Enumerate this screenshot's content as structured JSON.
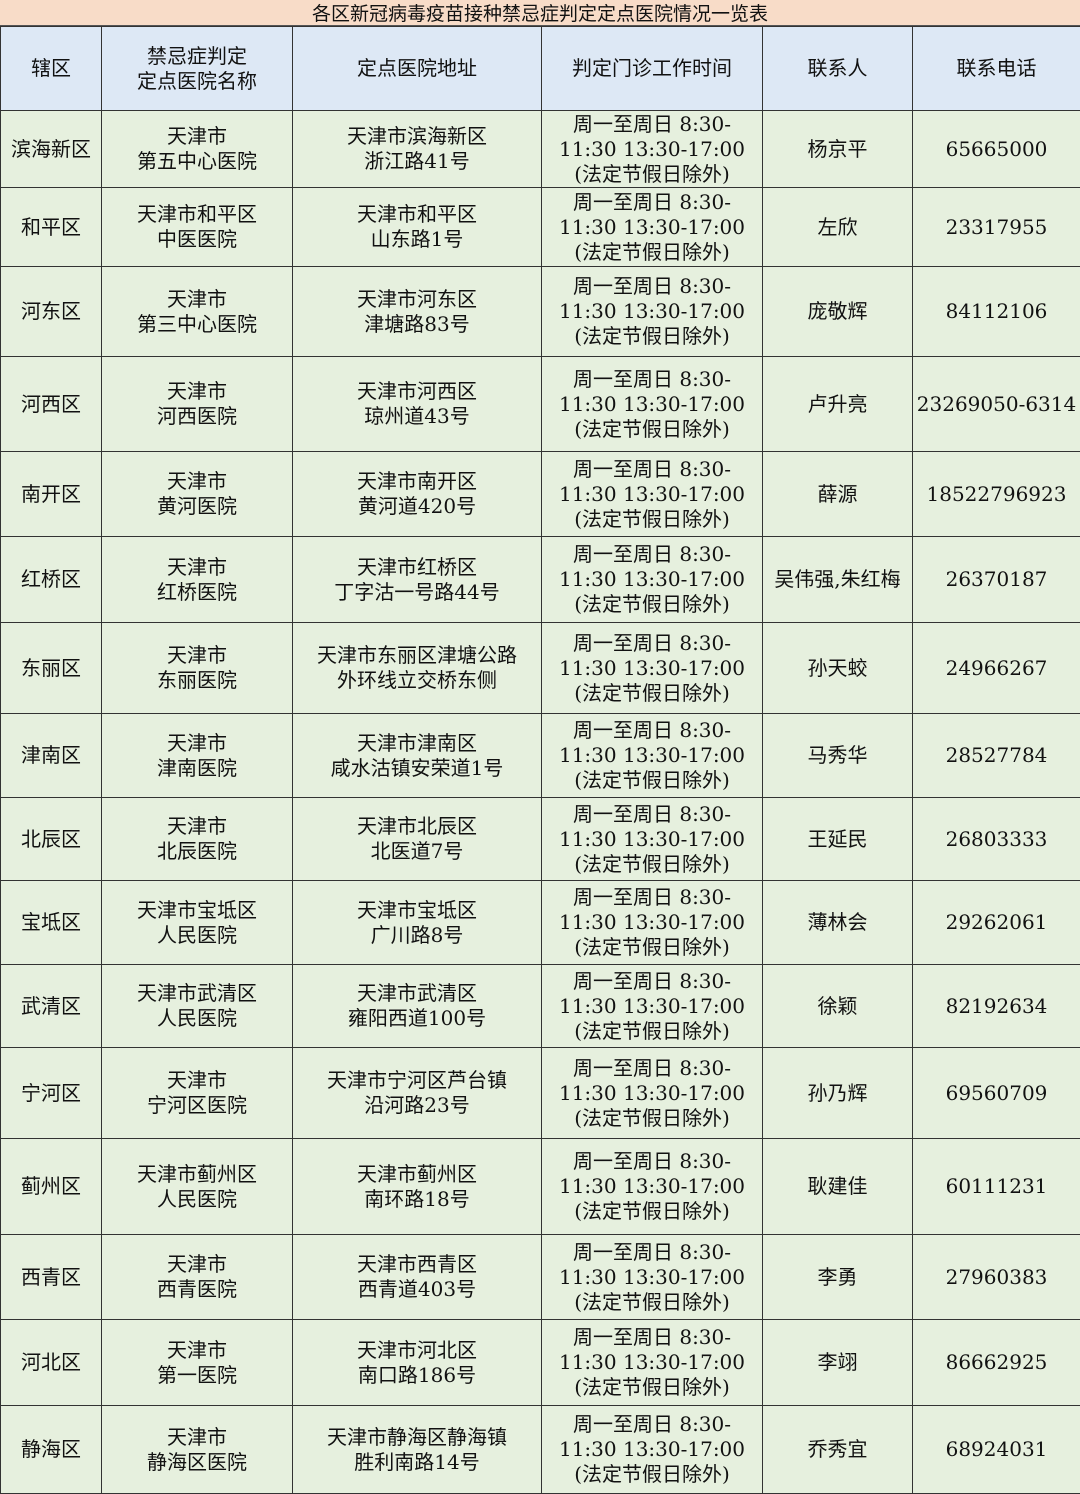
{
  "title": "各区新冠病毒疫苗接种禁忌症判定定点医院情况一览表",
  "headers": [
    "辖区",
    "禁忌症判定\n定点医院名称",
    "定点医院地址",
    "判定门诊工作时间",
    "联系人",
    "联系电话"
  ],
  "rows": [
    {
      "district": "滨海新区",
      "hospital": "天津市\n第五中心医院",
      "address": "天津市滨海新区\n浙江路41号",
      "hours": "周一至周日 8:30-\n11:30 13:30-17:00\n(法定节假日除外)",
      "contact": "杨京平",
      "phone": "65665000"
    },
    {
      "district": "和平区",
      "hospital": "天津市和平区\n中医医院",
      "address": "天津市和平区\n山东路1号",
      "hours": "周一至周日 8:30-\n11:30 13:30-17:00\n(法定节假日除外)",
      "contact": "左欣",
      "phone": "23317955"
    },
    {
      "district": "河东区",
      "hospital": "天津市\n第三中心医院",
      "address": "天津市河东区\n津塘路83号",
      "hours": "周一至周日 8:30-\n11:30 13:30-17:00\n(法定节假日除外)",
      "contact": "庞敬辉",
      "phone": "84112106"
    },
    {
      "district": "河西区",
      "hospital": "天津市\n河西医院",
      "address": "天津市河西区\n琼州道43号",
      "hours": "周一至周日 8:30-\n11:30 13:30-17:00\n(法定节假日除外)",
      "contact": "卢升亮",
      "phone": "23269050-6314"
    },
    {
      "district": "南开区",
      "hospital": "天津市\n黄河医院",
      "address": "天津市南开区\n黄河道420号",
      "hours": "周一至周日 8:30-\n11:30 13:30-17:00\n(法定节假日除外)",
      "contact": "薛源",
      "phone": "18522796923"
    },
    {
      "district": "红桥区",
      "hospital": "天津市\n红桥医院",
      "address": "天津市红桥区\n丁字沽一号路44号",
      "hours": "周一至周日 8:30-\n11:30 13:30-17:00\n(法定节假日除外)",
      "contact": "吴伟强,朱红梅",
      "phone": "26370187"
    },
    {
      "district": "东丽区",
      "hospital": "天津市\n东丽医院",
      "address": "天津市东丽区津塘公路\n外环线立交桥东侧",
      "hours": "周一至周日 8:30-\n11:30 13:30-17:00\n(法定节假日除外)",
      "contact": "孙天蛟",
      "phone": "24966267"
    },
    {
      "district": "津南区",
      "hospital": "天津市\n津南医院",
      "address": "天津市津南区\n咸水沽镇安荣道1号",
      "hours": "周一至周日 8:30-\n11:30 13:30-17:00\n(法定节假日除外)",
      "contact": "马秀华",
      "phone": "28527784"
    },
    {
      "district": "北辰区",
      "hospital": "天津市\n北辰医院",
      "address": "天津市北辰区\n北医道7号",
      "hours": "周一至周日 8:30-\n11:30 13:30-17:00\n(法定节假日除外)",
      "contact": "王延民",
      "phone": "26803333"
    },
    {
      "district": "宝坻区",
      "hospital": "天津市宝坻区\n人民医院",
      "address": "天津市宝坻区\n广川路8号",
      "hours": "周一至周日 8:30-\n11:30 13:30-17:00\n(法定节假日除外)",
      "contact": "薄林会",
      "phone": "29262061"
    },
    {
      "district": "武清区",
      "hospital": "天津市武清区\n人民医院",
      "address": "天津市武清区\n雍阳西道100号",
      "hours": "周一至周日 8:30-\n11:30 13:30-17:00\n(法定节假日除外)",
      "contact": "徐颖",
      "phone": "82192634"
    },
    {
      "district": "宁河区",
      "hospital": "天津市\n宁河区医院",
      "address": "天津市宁河区芦台镇\n沿河路23号",
      "hours": "周一至周日 8:30-\n11:30 13:30-17:00\n(法定节假日除外)",
      "contact": "孙乃辉",
      "phone": "69560709"
    },
    {
      "district": "蓟州区",
      "hospital": "天津市蓟州区\n人民医院",
      "address": "天津市蓟州区\n南环路18号",
      "hours": "周一至周日 8:30-\n11:30 13:30-17:00\n(法定节假日除外)",
      "contact": "耿建佳",
      "phone": "60111231"
    },
    {
      "district": "西青区",
      "hospital": "天津市\n西青医院",
      "address": "天津市西青区\n西青道403号",
      "hours": "周一至周日 8:30-\n11:30 13:30-17:00\n(法定节假日除外)",
      "contact": "李勇",
      "phone": "27960383"
    },
    {
      "district": "河北区",
      "hospital": "天津市\n第一医院",
      "address": "天津市河北区\n南口路186号",
      "hours": "周一至周日 8:30-\n11:30 13:30-17:00\n(法定节假日除外)",
      "contact": "李翊",
      "phone": "86662925"
    },
    {
      "district": "静海区",
      "hospital": "天津市\n静海区医院",
      "address": "天津市静海区静海镇\n胜利南路14号",
      "hours": "周一至周日 8:30-\n11:30 13:30-17:00\n(法定节假日除外)",
      "contact": "乔秀宜",
      "phone": "68924031"
    }
  ],
  "colors": {
    "title_bg": "#f8dcc8",
    "header_bg": "#dde8f5",
    "row_bg": "#e6f0de"
  }
}
